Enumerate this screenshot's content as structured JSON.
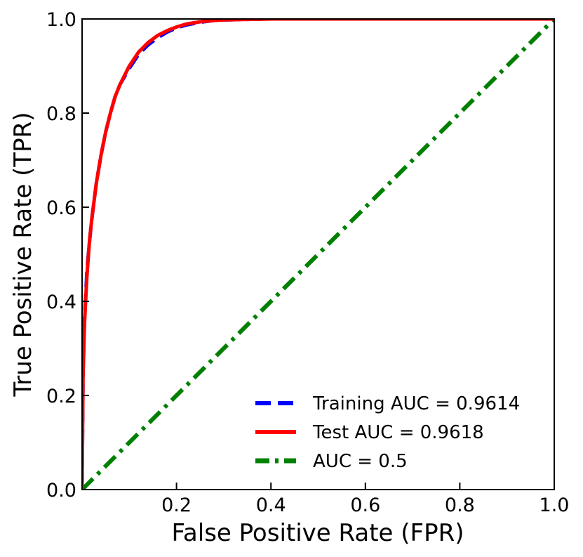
{
  "chart_data": {
    "type": "line",
    "title": "",
    "xlabel": "False Positive Rate (FPR)",
    "ylabel": "True Positive Rate (TPR)",
    "xlim": [
      0,
      1
    ],
    "ylim": [
      0,
      1
    ],
    "grid": false,
    "legend_position": "bottom-right",
    "x_ticks": [
      {
        "value": 0.2,
        "label": "0.2"
      },
      {
        "value": 0.4,
        "label": "0.4"
      },
      {
        "value": 0.6,
        "label": "0.6"
      },
      {
        "value": 0.8,
        "label": "0.8"
      },
      {
        "value": 1.0,
        "label": "1.0"
      }
    ],
    "y_ticks": [
      {
        "value": 0.0,
        "label": "0.0"
      },
      {
        "value": 0.2,
        "label": "0.2"
      },
      {
        "value": 0.4,
        "label": "0.4"
      },
      {
        "value": 0.6,
        "label": "0.6"
      },
      {
        "value": 0.8,
        "label": "0.8"
      },
      {
        "value": 1.0,
        "label": "1.0"
      }
    ],
    "series": [
      {
        "name": "Training AUC = 0.9614",
        "color": "#0000ff",
        "style": "dashed",
        "x": [
          0,
          0.002,
          0.005,
          0.01,
          0.015,
          0.02,
          0.03,
          0.04,
          0.05,
          0.06,
          0.07,
          0.08,
          0.1,
          0.12,
          0.14,
          0.16,
          0.18,
          0.2,
          0.22,
          0.25,
          0.28,
          0.3,
          0.35,
          0.4,
          0.5,
          0.6,
          0.8,
          1.0
        ],
        "y": [
          0,
          0.25,
          0.36,
          0.46,
          0.52,
          0.57,
          0.65,
          0.71,
          0.76,
          0.8,
          0.835,
          0.86,
          0.895,
          0.925,
          0.945,
          0.96,
          0.972,
          0.981,
          0.987,
          0.993,
          0.997,
          0.998,
          0.999,
          1.0,
          1.0,
          1.0,
          1.0,
          1.0
        ]
      },
      {
        "name": "Test AUC = 0.9618",
        "color": "#ff0000",
        "style": "solid",
        "x": [
          0,
          0.002,
          0.005,
          0.01,
          0.015,
          0.02,
          0.03,
          0.04,
          0.05,
          0.06,
          0.07,
          0.08,
          0.1,
          0.12,
          0.14,
          0.16,
          0.18,
          0.2,
          0.22,
          0.25,
          0.28,
          0.3,
          0.35,
          0.4,
          0.5,
          0.6,
          0.8,
          1.0
        ],
        "y": [
          0,
          0.24,
          0.35,
          0.45,
          0.52,
          0.57,
          0.65,
          0.71,
          0.76,
          0.8,
          0.835,
          0.86,
          0.9,
          0.93,
          0.95,
          0.965,
          0.975,
          0.983,
          0.989,
          0.994,
          0.997,
          0.998,
          0.999,
          1.0,
          1.0,
          1.0,
          1.0,
          1.0
        ]
      },
      {
        "name": "AUC = 0.5",
        "color": "#008000",
        "style": "dashdot",
        "x": [
          0,
          1
        ],
        "y": [
          0,
          1
        ]
      }
    ]
  }
}
